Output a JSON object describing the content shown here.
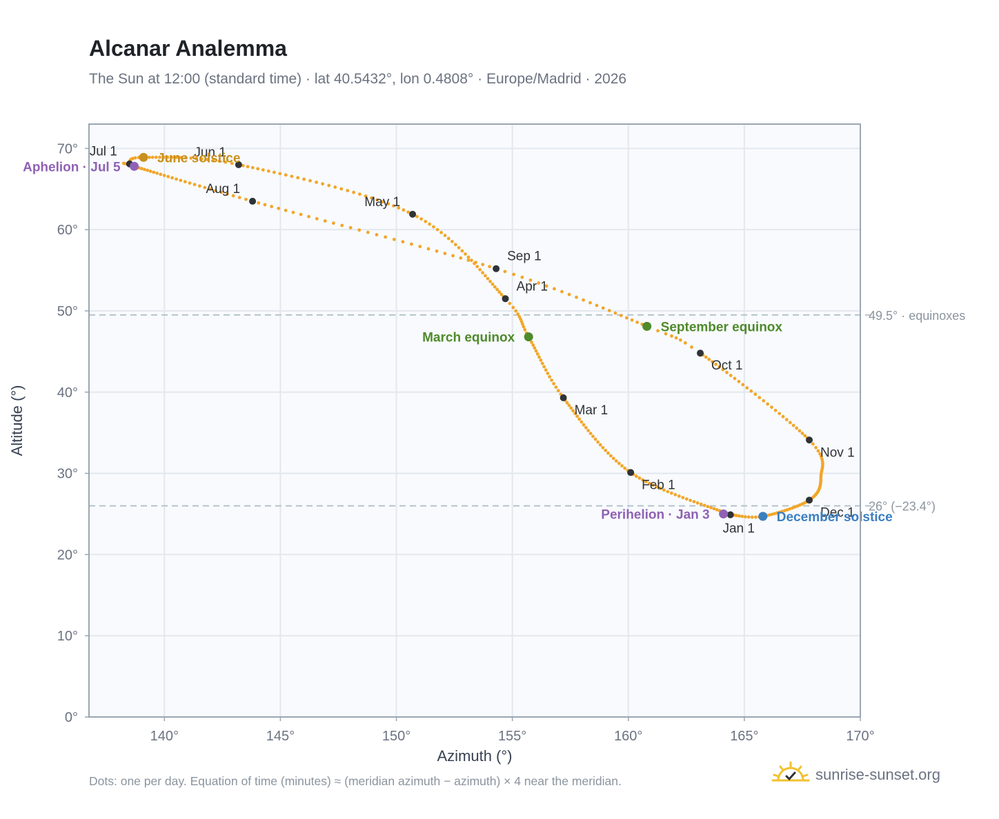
{
  "title": "Alcanar Analemma",
  "subtitle": "The Sun at 12:00 (standard time) · lat 40.5432°, lon 0.4808° · Europe/Madrid · 2026",
  "footnote": "Dots: one per day. Equation of time (minutes) ≈ (meridian azimuth − azimuth) × 4 near the meridian.",
  "brand": {
    "name": "sunrise-sunset.org",
    "icon": "sun-logo-icon"
  },
  "colors": {
    "curve": "#f2a62a",
    "month_marker": "#2f3236",
    "equinox": "#4f8a2b",
    "june_solstice": "#c8901e",
    "december_solstice": "#3b7fc1",
    "apsis": "#8f62b5",
    "grid": "#e3e8ee",
    "plot_bg": "#f8fafd",
    "reference_line": "#b5c3cc"
  },
  "chart_data": {
    "type": "scatter",
    "xlabel": "Azimuth (°)",
    "ylabel": "Altitude (°)",
    "xlim": [
      136.75,
      170
    ],
    "ylim": [
      0,
      73
    ],
    "xticks": [
      140,
      145,
      150,
      155,
      160,
      165,
      170
    ],
    "yticks": [
      0,
      10,
      20,
      30,
      40,
      50,
      60,
      70
    ],
    "x_tick_labels": [
      "140°",
      "145°",
      "150°",
      "155°",
      "160°",
      "165°",
      "170°"
    ],
    "y_tick_labels": [
      "0°",
      "10°",
      "20°",
      "30°",
      "40°",
      "50°",
      "60°",
      "70°"
    ],
    "grid": true,
    "series_marker": "one dot per day",
    "anchors": [
      {
        "day": 0,
        "azimuth": 164.4,
        "altitude": 24.9
      },
      {
        "day": 31,
        "azimuth": 160.1,
        "altitude": 30.1
      },
      {
        "day": 59,
        "azimuth": 157.2,
        "altitude": 39.3
      },
      {
        "day": 78,
        "azimuth": 155.7,
        "altitude": 46.8
      },
      {
        "day": 90,
        "azimuth": 154.7,
        "altitude": 51.5
      },
      {
        "day": 120,
        "azimuth": 150.7,
        "altitude": 61.9
      },
      {
        "day": 151,
        "azimuth": 143.2,
        "altitude": 68.0
      },
      {
        "day": 171,
        "azimuth": 139.1,
        "altitude": 68.9
      },
      {
        "day": 181,
        "azimuth": 138.5,
        "altitude": 68.1
      },
      {
        "day": 185,
        "azimuth": 138.7,
        "altitude": 67.8
      },
      {
        "day": 212,
        "azimuth": 143.8,
        "altitude": 63.5
      },
      {
        "day": 243,
        "azimuth": 154.3,
        "altitude": 55.2
      },
      {
        "day": 265,
        "azimuth": 160.8,
        "altitude": 48.1
      },
      {
        "day": 273,
        "azimuth": 163.1,
        "altitude": 44.8
      },
      {
        "day": 304,
        "azimuth": 167.8,
        "altitude": 34.1
      },
      {
        "day": 319,
        "azimuth": 168.3,
        "altitude": 29.5
      },
      {
        "day": 334,
        "azimuth": 167.8,
        "altitude": 26.7
      },
      {
        "day": 354,
        "azimuth": 165.8,
        "altitude": 24.7
      },
      {
        "day": 365,
        "azimuth": 164.4,
        "altitude": 24.9
      }
    ],
    "month_markers": [
      {
        "label": "Jan 1",
        "azimuth": 164.4,
        "altitude": 24.9,
        "anchor": "below-left"
      },
      {
        "label": "Feb 1",
        "azimuth": 160.1,
        "altitude": 30.1,
        "anchor": "below-right"
      },
      {
        "label": "Mar 1",
        "azimuth": 157.2,
        "altitude": 39.3,
        "anchor": "below-right"
      },
      {
        "label": "Apr 1",
        "azimuth": 154.7,
        "altitude": 51.5,
        "anchor": "above-right"
      },
      {
        "label": "May 1",
        "azimuth": 150.7,
        "altitude": 61.9,
        "anchor": "above-left"
      },
      {
        "label": "Jun 1",
        "azimuth": 143.2,
        "altitude": 68.0,
        "anchor": "above-left"
      },
      {
        "label": "Jul 1",
        "azimuth": 138.5,
        "altitude": 68.1,
        "anchor": "above-left"
      },
      {
        "label": "Aug 1",
        "azimuth": 143.8,
        "altitude": 63.5,
        "anchor": "above-left"
      },
      {
        "label": "Sep 1",
        "azimuth": 154.3,
        "altitude": 55.2,
        "anchor": "above-right"
      },
      {
        "label": "Oct 1",
        "azimuth": 163.1,
        "altitude": 44.8,
        "anchor": "below-right"
      },
      {
        "label": "Nov 1",
        "azimuth": 167.8,
        "altitude": 34.1,
        "anchor": "below-right"
      },
      {
        "label": "Dec 1",
        "azimuth": 167.8,
        "altitude": 26.7,
        "anchor": "below-right"
      }
    ],
    "events": [
      {
        "label": "March equinox",
        "azimuth": 155.7,
        "altitude": 46.8,
        "color_key": "equinox",
        "anchor": "left"
      },
      {
        "label": "September equinox",
        "azimuth": 160.8,
        "altitude": 48.1,
        "color_key": "equinox",
        "anchor": "right"
      },
      {
        "label": "June solstice",
        "azimuth": 139.1,
        "altitude": 68.9,
        "color_key": "june_solstice",
        "anchor": "right"
      },
      {
        "label": "December solstice",
        "azimuth": 165.8,
        "altitude": 24.7,
        "color_key": "december_solstice",
        "anchor": "right"
      },
      {
        "label": "Aphelion · Jul 5",
        "azimuth": 138.7,
        "altitude": 67.8,
        "color_key": "apsis",
        "anchor": "left"
      },
      {
        "label": "Perihelion · Jan 3",
        "azimuth": 164.1,
        "altitude": 25.0,
        "color_key": "apsis",
        "anchor": "left"
      }
    ],
    "reference_lines": [
      {
        "altitude": 49.5,
        "label": "49.5° · equinoxes"
      },
      {
        "altitude": 26,
        "label": "26° (−23.4°)"
      }
    ]
  }
}
